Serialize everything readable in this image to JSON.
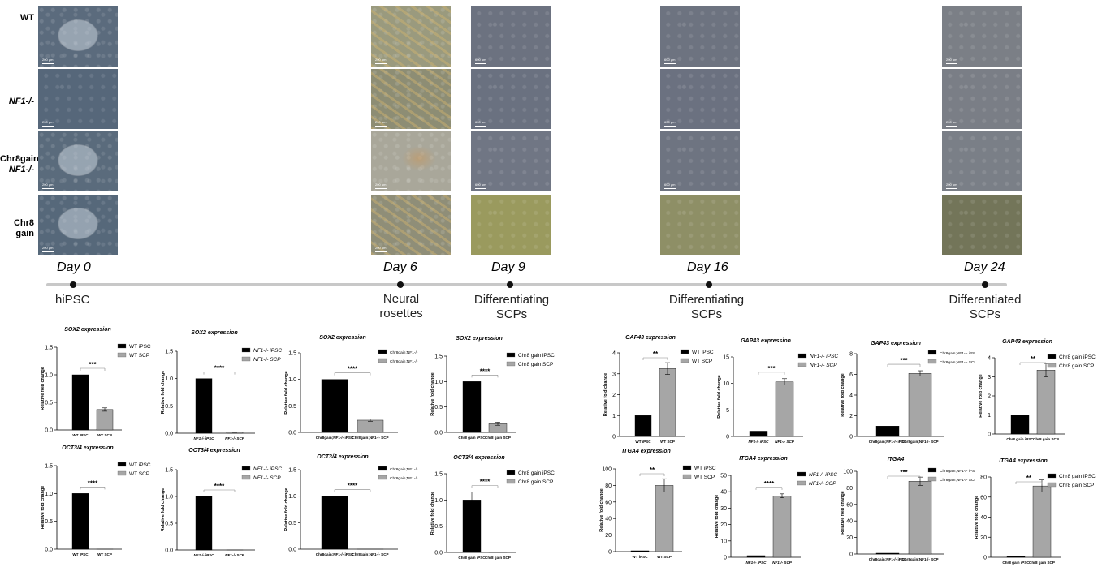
{
  "row_labels": [
    {
      "text": "WT",
      "italic": false
    },
    {
      "text": "NF1-/-",
      "italic": true
    },
    {
      "text": "Chr8gain;",
      "text2": "NF1-/-",
      "italic": false,
      "italic2": true
    },
    {
      "text": "Chr8",
      "text2": "gain",
      "italic": false,
      "italic2": false
    }
  ],
  "days": [
    {
      "label": "Day 0",
      "stage": "hiPSC"
    },
    {
      "label": "Day 6",
      "stage": "Neural rosettes"
    },
    {
      "label": "Day 9",
      "stage": "Differentiating SCPs"
    },
    {
      "label": "Day 16",
      "stage": "Differentiating SCPs"
    },
    {
      "label": "Day 24",
      "stage": "Differentiated SCPs"
    }
  ],
  "scale_bars": {
    "day0": [
      "200 µm",
      "200 µm",
      "200 µm",
      "200 µm"
    ],
    "day6": [
      "200 µm",
      "200 µm",
      "200 µm",
      "200 µm"
    ],
    "day9": [
      "600 µm",
      "600 µm",
      "600 µm",
      ""
    ],
    "day16": [
      "600 µm",
      "600 µm",
      "600 µm",
      ""
    ],
    "day24": [
      "200 µm",
      "200 µm",
      "200 µm",
      ""
    ]
  },
  "colors": {
    "ipsc": "#000000",
    "scp": "#a6a6a6",
    "timeline": "#c8c8c8"
  },
  "chart_data": [
    {
      "type": "bar",
      "title": "SOX2 expression",
      "ylabel": "Relative fold change",
      "categories": [
        "WT iPSC",
        "WT SCP"
      ],
      "values": [
        1.0,
        0.37
      ],
      "errors": [
        0,
        0.03
      ],
      "ylim": [
        0,
        1.5
      ],
      "yticks": [
        0.0,
        0.5,
        1.0,
        1.5
      ],
      "significance": "***",
      "legend": [
        "WT iPSC",
        "WT SCP"
      ],
      "legend_italic": false
    },
    {
      "type": "bar",
      "title": "SOX2 expression",
      "ylabel": "Relative fold change",
      "categories": [
        "NF1-/- iPSC",
        "NF1-/- SCP"
      ],
      "values": [
        1.0,
        0.02
      ],
      "errors": [
        0,
        0.005
      ],
      "ylim": [
        0,
        1.5
      ],
      "yticks": [
        0.0,
        0.5,
        1.0,
        1.5
      ],
      "significance": "****",
      "legend": [
        "NF1-/- iPSC",
        "NF1-/- SCP"
      ],
      "legend_italic": true
    },
    {
      "type": "bar",
      "title": "SOX2 expression",
      "ylabel": "Relative fold change",
      "categories": [
        "Chr8gain;NF1-/- iPSC",
        "Chr8gain;NF1-/- SCP"
      ],
      "values": [
        1.0,
        0.23
      ],
      "errors": [
        0,
        0.02
      ],
      "ylim": [
        0,
        1.5
      ],
      "yticks": [
        0.0,
        0.5,
        1.0,
        1.5
      ],
      "significance": "****",
      "legend": [
        "Chr8gain;NF1-/- iPSC",
        "Chr8gain;NF1-/- SCP"
      ],
      "legend_italic": false
    },
    {
      "type": "bar",
      "title": "SOX2 expression",
      "ylabel": "Relative fold change",
      "categories": [
        "Chr8 gain iPSC",
        "Chr8 gain SCP"
      ],
      "values": [
        1.0,
        0.17
      ],
      "errors": [
        0,
        0.03
      ],
      "ylim": [
        0,
        1.5
      ],
      "yticks": [
        0.0,
        0.5,
        1.0,
        1.5
      ],
      "significance": "****",
      "legend": [
        "Chr8 gain iPSC",
        "Chr8 gain SCP"
      ],
      "legend_italic": false
    },
    {
      "type": "bar",
      "title": "OCT3/4 expression",
      "ylabel": "Relative fold change",
      "categories": [
        "WT iPSC",
        "WT SCP"
      ],
      "values": [
        1.0,
        0.0
      ],
      "errors": [
        0,
        0
      ],
      "ylim": [
        0,
        1.5
      ],
      "yticks": [
        0.0,
        0.5,
        1.0,
        1.5
      ],
      "significance": "****",
      "legend": [
        "WT iPSC",
        "WT SCP"
      ],
      "legend_italic": false
    },
    {
      "type": "bar",
      "title": "OCT3/4 expression",
      "ylabel": "Relative fold change",
      "categories": [
        "NF1-/- iPSC",
        "NF1-/- SCP"
      ],
      "values": [
        1.0,
        0.0
      ],
      "errors": [
        0,
        0
      ],
      "ylim": [
        0,
        1.5
      ],
      "yticks": [
        0.0,
        0.5,
        1.0,
        1.5
      ],
      "significance": "****",
      "legend": [
        "NF1-/- iPSC",
        "NF1-/- SCP"
      ],
      "legend_italic": true
    },
    {
      "type": "bar",
      "title": "OCT3/4 expression",
      "ylabel": "Relative fold change",
      "categories": [
        "Chr8gain;NF1-/- iPSC",
        "Chr8gain;NF1-/- SCP"
      ],
      "values": [
        1.0,
        0.0
      ],
      "errors": [
        0,
        0
      ],
      "ylim": [
        0,
        1.5
      ],
      "yticks": [
        0.0,
        0.5,
        1.0,
        1.5
      ],
      "significance": "****",
      "legend": [
        "Chr8gain;NF1-/- iPSC",
        "Chr8gain;NF1-/- SCP"
      ],
      "legend_italic": false
    },
    {
      "type": "bar",
      "title": "OCT3/4 expression",
      "ylabel": "Relative fold change",
      "categories": [
        "Chr8 gain iPSC",
        "Chr8 gain SCP"
      ],
      "values": [
        1.0,
        0.0
      ],
      "errors": [
        0.15,
        0
      ],
      "ylim": [
        0,
        1.5
      ],
      "yticks": [
        0.0,
        0.5,
        1.0,
        1.5
      ],
      "significance": "****",
      "legend": [
        "Chr8 gain iPSC",
        "Chr8 gain SCP"
      ],
      "legend_italic": false
    },
    {
      "type": "bar",
      "title": "GAP43 expression",
      "ylabel": "Relative fold change",
      "categories": [
        "WT iPSC",
        "WT SCP"
      ],
      "values": [
        1.0,
        3.25
      ],
      "errors": [
        0,
        0.28
      ],
      "ylim": [
        0,
        4
      ],
      "yticks": [
        0,
        1,
        2,
        3,
        4
      ],
      "significance": "**",
      "legend": [
        "WT iPSC",
        "WT SCP"
      ],
      "legend_italic": false
    },
    {
      "type": "bar",
      "title": "GAP43 expression",
      "ylabel": "Relative fold change",
      "categories": [
        "NF1-/- iPSC",
        "NF1-/- SCP"
      ],
      "values": [
        1.0,
        10.3
      ],
      "errors": [
        0,
        0.6
      ],
      "ylim": [
        0,
        15
      ],
      "yticks": [
        0,
        5,
        10,
        15
      ],
      "significance": "***",
      "legend": [
        "NF1-/- iPSC",
        "NF1-/- SCP"
      ],
      "legend_italic": true
    },
    {
      "type": "bar",
      "title": "GAP43 expression",
      "ylabel": "Relative fold change",
      "categories": [
        "Chr8gain;NF1-/- iPSC",
        "Chr8gain;NF1-/- SCP"
      ],
      "values": [
        1.0,
        6.1
      ],
      "errors": [
        0,
        0.25
      ],
      "ylim": [
        0,
        8
      ],
      "yticks": [
        0,
        2,
        4,
        6,
        8
      ],
      "significance": "***",
      "legend": [
        "Chr8gain;NF1-/- iPSC",
        "Chr8gain;NF1-/- SCP"
      ],
      "legend_italic": false
    },
    {
      "type": "bar",
      "title": "GAP43 expression",
      "ylabel": "Relative fold change",
      "categories": [
        "Chr8 gain iPSC",
        "Chr8 gain SCP"
      ],
      "values": [
        1.0,
        3.35
      ],
      "errors": [
        0,
        0.35
      ],
      "ylim": [
        0,
        4
      ],
      "yticks": [
        0,
        1,
        2,
        3,
        4
      ],
      "significance": "**",
      "legend": [
        "Chr8 gain iPSC",
        "Chr8 gain SCP"
      ],
      "legend_italic": false
    },
    {
      "type": "bar",
      "title": "ITGA4 expression",
      "ylabel": "Relative fold change",
      "categories": [
        "WT iPSC",
        "WT SCP"
      ],
      "values": [
        1.0,
        80
      ],
      "errors": [
        0,
        8
      ],
      "ylim": [
        0,
        100
      ],
      "yticks": [
        0,
        20,
        40,
        60,
        80,
        100
      ],
      "significance": "**",
      "legend": [
        "WT iPSC",
        "WT SCP"
      ],
      "legend_italic": false
    },
    {
      "type": "bar",
      "title": "ITGA4 expression",
      "ylabel": "Relative fold change",
      "categories": [
        "NF1-/- iPSC",
        "NF1-/- SCP"
      ],
      "values": [
        1.0,
        37.5
      ],
      "errors": [
        0,
        1.2
      ],
      "ylim": [
        0,
        50
      ],
      "yticks": [
        0,
        10,
        20,
        30,
        40,
        50
      ],
      "significance": "****",
      "legend": [
        "NF1-/- iPSC",
        "NF1-/- SCP"
      ],
      "legend_italic": true
    },
    {
      "type": "bar",
      "title": "ITGA4",
      "ylabel": "Relative fold change",
      "categories": [
        "Chr8gain;NF1-/- iPSC",
        "Chr8gain;NF1-/- SCP"
      ],
      "values": [
        1.0,
        88
      ],
      "errors": [
        0,
        5
      ],
      "ylim": [
        0,
        100
      ],
      "yticks": [
        0,
        20,
        40,
        60,
        80,
        100
      ],
      "significance": "***",
      "legend": [
        "Chr8gain;NF1-/- iPSC",
        "Chr8gain;NF1-/- SCP"
      ],
      "legend_italic": false
    },
    {
      "type": "bar",
      "title": "ITGA4 expression",
      "ylabel": "Relative fold change",
      "categories": [
        "Chr8 gain iPSC",
        "Chr8 gain SCP"
      ],
      "values": [
        1.0,
        71
      ],
      "errors": [
        0,
        6
      ],
      "ylim": [
        0,
        80
      ],
      "yticks": [
        0,
        20,
        40,
        60,
        80
      ],
      "significance": "**",
      "legend": [
        "Chr8 gain iPSC",
        "Chr8 gain SCP"
      ],
      "legend_italic": false
    }
  ]
}
